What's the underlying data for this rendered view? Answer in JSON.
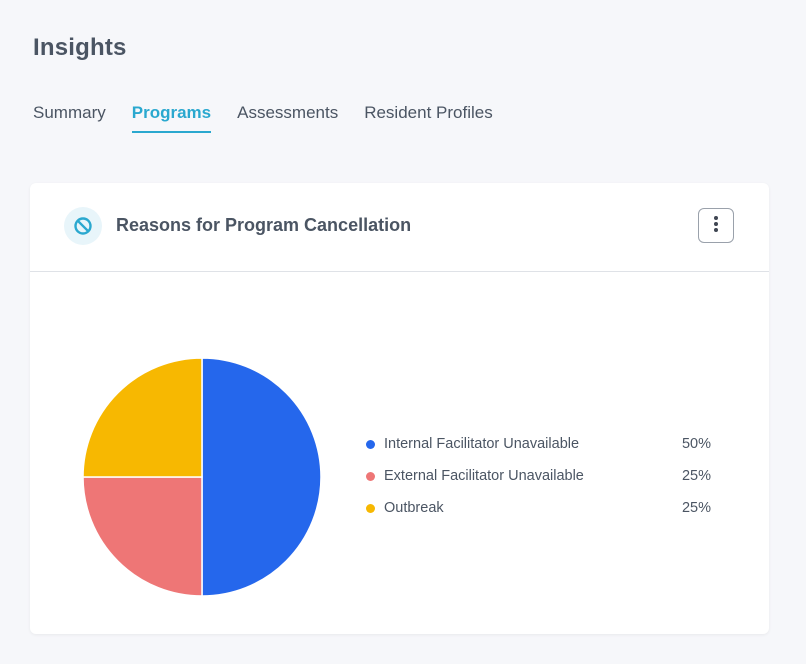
{
  "page": {
    "title": "Insights"
  },
  "tabs": [
    {
      "label": "Summary",
      "active": false
    },
    {
      "label": "Programs",
      "active": true
    },
    {
      "label": "Assessments",
      "active": false
    },
    {
      "label": "Resident Profiles",
      "active": false
    }
  ],
  "card": {
    "title": "Reasons for Program Cancellation",
    "icon": "cancel-icon",
    "menu_icon": "kebab-menu-icon"
  },
  "colors": {
    "accent": "#2aa8cf",
    "internal": "#2567ec",
    "external": "#ee7676",
    "outbreak": "#f7b801"
  },
  "chart_data": {
    "type": "pie",
    "categories": [
      "Internal Facilitator Unavailable",
      "External Facilitator Unavailable",
      "Outbreak"
    ],
    "values": [
      50,
      25,
      25
    ],
    "value_labels": [
      "50%",
      "25%",
      "25%"
    ],
    "colors": [
      "#2567ec",
      "#ee7676",
      "#f7b801"
    ],
    "legend_position": "right"
  }
}
